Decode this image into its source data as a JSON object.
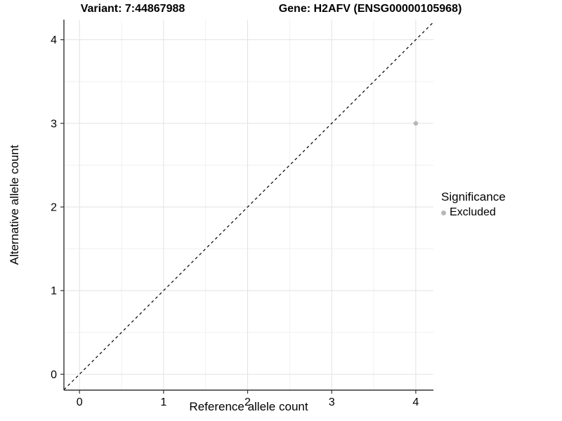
{
  "titles": {
    "left": "Variant: 7:44867988",
    "right": "Gene: H2AFV (ENSG00000105968)"
  },
  "chart_data": {
    "type": "scatter",
    "title_left": "Variant: 7:44867988",
    "title_right": "Gene: H2AFV (ENSG00000105968)",
    "xlabel": "Reference allele count",
    "ylabel": "Alternative allele count",
    "xticks": [
      0,
      1,
      2,
      3,
      4
    ],
    "yticks": [
      0,
      1,
      2,
      3,
      4
    ],
    "xlim": [
      -0.185,
      4.21
    ],
    "ylim": [
      -0.19,
      4.24
    ],
    "grid": "major+minor",
    "identity_line": {
      "shown": true,
      "style": "dashed",
      "slope": 1,
      "intercept": 0
    },
    "points": [
      {
        "x": 4,
        "y": 3,
        "significance": "Excluded"
      }
    ],
    "legend": {
      "title": "Significance",
      "position": "right",
      "entries": [
        {
          "label": "Excluded",
          "color": "#b8b8b8"
        }
      ]
    }
  },
  "colors": {
    "background": "#ffffff",
    "text": "#000000",
    "axis": "#333333",
    "grid_major": "#e2e2e2",
    "grid_minor": "#f1f1f1",
    "point": "#b8b8b8",
    "identity_line": "#000000"
  }
}
